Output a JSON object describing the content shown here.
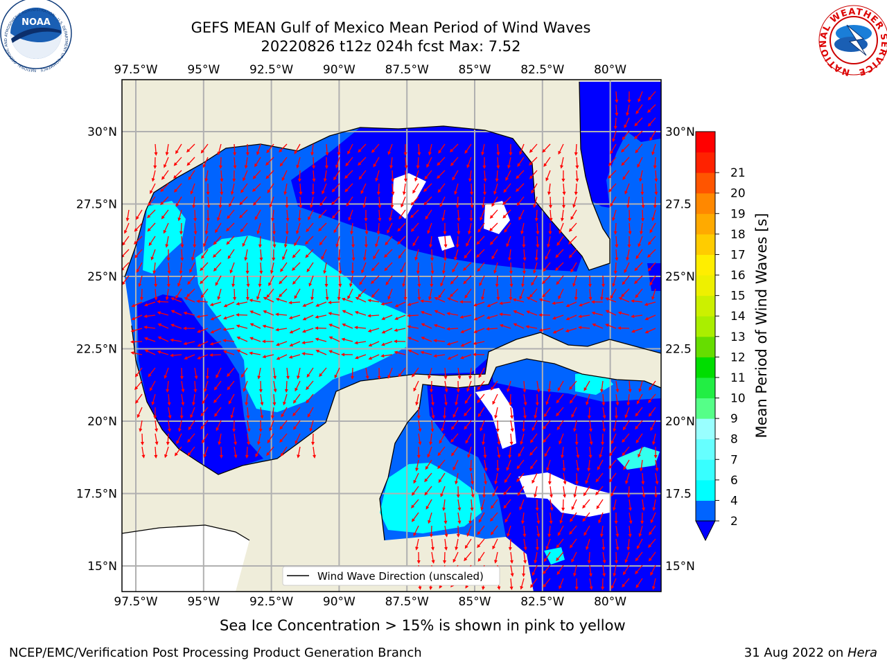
{
  "header": {
    "title_line1": "GEFS MEAN Gulf of Mexico Mean Period of Wind Waves",
    "title_line2": "20220826 t12z 024h fcst   Max: 7.52"
  },
  "logos": {
    "left": "NOAA",
    "left_ring": "NATIONAL OCEANIC AND ATMOSPHERIC ADMINISTRATION · U.S. DEPARTMENT OF COMMERCE",
    "right_ring": "NATIONAL WEATHER SERVICE"
  },
  "map": {
    "lon_labels": [
      "97.5°W",
      "95°W",
      "92.5°W",
      "90°W",
      "87.5°W",
      "85°W",
      "82.5°W",
      "80°W"
    ],
    "lon_values": [
      -97.5,
      -95,
      -92.5,
      -90,
      -87.5,
      -85,
      -82.5,
      -80
    ],
    "lat_labels_left": [
      "30°N",
      "27.5°N",
      "25°N",
      "22.5°N",
      "20°N",
      "17.5°N",
      "15°N"
    ],
    "lat_labels_right": [
      "30°N",
      "27.5",
      "25°N",
      "22.5",
      "20°N",
      "17.5",
      "15°N"
    ],
    "lat_values": [
      30,
      27.5,
      25,
      22.5,
      20,
      17.5,
      15
    ],
    "legend_label": "Wind Wave Direction (unscaled)",
    "colors": {
      "land": "#efedda",
      "ocean_white": "#ffffff",
      "grid": "#b0b0b0",
      "arrow": "#ff0000"
    }
  },
  "colorbar": {
    "label": "Mean Period of Wind Waves [s]",
    "ticks": [
      "2",
      "4",
      "6",
      "7",
      "8",
      "9",
      "10",
      "11",
      "12",
      "13",
      "14",
      "15",
      "16",
      "17",
      "18",
      "19",
      "20",
      "21"
    ],
    "colors": [
      "#0064ff",
      "#00ffff",
      "#38ffff",
      "#66ffff",
      "#99ffff",
      "#55ff88",
      "#22ee44",
      "#00dd00",
      "#66dd00",
      "#aaee00",
      "#ccf000",
      "#eef000",
      "#ffee00",
      "#ffcc00",
      "#ffaa00",
      "#ff8800",
      "#ff5500",
      "#ff2200",
      "#ff0000"
    ],
    "under_color": "#0000ff"
  },
  "note": "Sea Ice Concentration > 15% is shown in pink to yellow",
  "footer": {
    "left": "NCEP/EMC/Verification Post Processing Product Generation Branch",
    "date": "31 Aug 2022 on ",
    "machine": "Hera"
  }
}
